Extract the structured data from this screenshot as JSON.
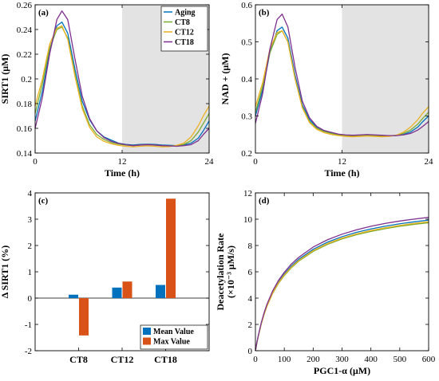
{
  "colors": {
    "aging": "#0072BD",
    "ct8": "#77AC30",
    "ct12": "#EDB120",
    "ct18": "#7E2F8E",
    "mean": "#0072BD",
    "max": "#D95319",
    "night_shade": "#E3E3E3"
  },
  "chart_data": [
    {
      "id": "a",
      "type": "line",
      "panel_label": "(a)",
      "xlabel": "Time (h)",
      "ylabel": "SIRT1 (μM)",
      "xlim": [
        0,
        24
      ],
      "ylim": [
        0.14,
        0.26
      ],
      "xticks": [
        0,
        12,
        24
      ],
      "yticks": [
        0.14,
        0.16,
        0.18,
        0.2,
        0.22,
        0.24,
        0.26
      ],
      "ytick_labels": [
        "0.14",
        "0.16",
        "0.18",
        "0.2",
        "0.22",
        "0.24",
        "0.26"
      ],
      "shaded_x": [
        12,
        24
      ],
      "legend": "top-right",
      "x": [
        0,
        1,
        2,
        3,
        3.7,
        4.5,
        5.5,
        6.5,
        7.5,
        8.5,
        9.5,
        10.5,
        11.5,
        12.5,
        13.5,
        14.5,
        15.5,
        16.5,
        17.5,
        18.5,
        19.5,
        20.5,
        21.5,
        22.5,
        23.2,
        24
      ],
      "series": [
        {
          "name": "Aging",
          "color_key": "aging",
          "values": [
            0.166,
            0.19,
            0.222,
            0.243,
            0.246,
            0.237,
            0.208,
            0.182,
            0.167,
            0.158,
            0.153,
            0.1505,
            0.148,
            0.147,
            0.1465,
            0.147,
            0.1472,
            0.147,
            0.1465,
            0.1463,
            0.146,
            0.1465,
            0.148,
            0.152,
            0.158,
            0.166
          ]
        },
        {
          "name": "CT8",
          "color_key": "ct8",
          "values": [
            0.172,
            0.196,
            0.225,
            0.24,
            0.242,
            0.233,
            0.204,
            0.178,
            0.163,
            0.155,
            0.151,
            0.1485,
            0.1472,
            0.1465,
            0.146,
            0.1465,
            0.1468,
            0.1465,
            0.146,
            0.1458,
            0.146,
            0.147,
            0.15,
            0.157,
            0.164,
            0.172
          ]
        },
        {
          "name": "CT12",
          "color_key": "ct12",
          "values": [
            0.178,
            0.2,
            0.228,
            0.241,
            0.243,
            0.232,
            0.202,
            0.176,
            0.161,
            0.153,
            0.1495,
            0.1475,
            0.1462,
            0.1455,
            0.145,
            0.1455,
            0.1458,
            0.1455,
            0.145,
            0.1452,
            0.1462,
            0.148,
            0.153,
            0.162,
            0.17,
            0.178
          ]
        },
        {
          "name": "CT18",
          "color_key": "ct18",
          "values": [
            0.16,
            0.185,
            0.22,
            0.248,
            0.255,
            0.248,
            0.216,
            0.186,
            0.168,
            0.158,
            0.1525,
            0.1495,
            0.1478,
            0.1468,
            0.146,
            0.1465,
            0.1468,
            0.1465,
            0.146,
            0.1458,
            0.1455,
            0.146,
            0.1468,
            0.15,
            0.155,
            0.16
          ]
        }
      ]
    },
    {
      "id": "b",
      "type": "line",
      "panel_label": "(b)",
      "xlabel": "Time (h)",
      "ylabel": "NAD + (μM)",
      "xlim": [
        0,
        24
      ],
      "ylim": [
        0.2,
        0.6
      ],
      "xticks": [
        0,
        12,
        24
      ],
      "yticks": [
        0.2,
        0.3,
        0.4,
        0.5,
        0.6
      ],
      "ytick_labels": [
        "0.2",
        "0.3",
        "0.4",
        "0.5",
        "0.6"
      ],
      "shaded_x": [
        12,
        24
      ],
      "x": [
        0,
        1,
        2,
        3,
        3.7,
        4.5,
        5.5,
        6.5,
        7.5,
        8.5,
        9.5,
        10.5,
        11.5,
        12.5,
        13.5,
        14.5,
        15.5,
        16.5,
        17.5,
        18.5,
        19.5,
        20.5,
        21.5,
        22.5,
        23.2,
        24
      ],
      "series": [
        {
          "name": "Aging",
          "color_key": "aging",
          "values": [
            0.3,
            0.37,
            0.47,
            0.53,
            0.54,
            0.51,
            0.41,
            0.33,
            0.29,
            0.27,
            0.26,
            0.255,
            0.25,
            0.248,
            0.247,
            0.248,
            0.249,
            0.248,
            0.247,
            0.246,
            0.247,
            0.25,
            0.257,
            0.27,
            0.285,
            0.3
          ]
        },
        {
          "name": "CT8",
          "color_key": "ct8",
          "values": [
            0.31,
            0.38,
            0.47,
            0.52,
            0.53,
            0.5,
            0.4,
            0.325,
            0.285,
            0.267,
            0.258,
            0.253,
            0.249,
            0.247,
            0.246,
            0.247,
            0.248,
            0.247,
            0.246,
            0.246,
            0.248,
            0.253,
            0.262,
            0.278,
            0.294,
            0.31
          ]
        },
        {
          "name": "CT12",
          "color_key": "ct12",
          "values": [
            0.325,
            0.39,
            0.48,
            0.525,
            0.53,
            0.5,
            0.4,
            0.322,
            0.282,
            0.264,
            0.255,
            0.25,
            0.247,
            0.245,
            0.244,
            0.245,
            0.246,
            0.245,
            0.244,
            0.245,
            0.248,
            0.256,
            0.27,
            0.29,
            0.308,
            0.325
          ]
        },
        {
          "name": "CT18",
          "color_key": "ct18",
          "values": [
            0.28,
            0.36,
            0.48,
            0.56,
            0.575,
            0.54,
            0.43,
            0.34,
            0.295,
            0.272,
            0.261,
            0.256,
            0.251,
            0.249,
            0.248,
            0.249,
            0.25,
            0.249,
            0.248,
            0.247,
            0.247,
            0.249,
            0.253,
            0.262,
            0.272,
            0.285
          ]
        }
      ]
    },
    {
      "id": "c",
      "type": "bar",
      "panel_label": "(c)",
      "xlabel": "",
      "ylabel": "Δ SIRT1 (%)",
      "categories": [
        "CT8",
        "CT12",
        "CT18"
      ],
      "ylim": [
        -2,
        4
      ],
      "yticks": [
        -2,
        -1,
        0,
        1,
        2,
        3,
        4
      ],
      "ytick_labels": [
        "-2",
        "-1",
        "0",
        "1",
        "2",
        "3",
        "4"
      ],
      "legend": "bottom-right",
      "series": [
        {
          "name": "Mean Value",
          "color_key": "mean",
          "values": [
            0.13,
            0.4,
            0.5
          ]
        },
        {
          "name": "Max Value",
          "color_key": "max",
          "values": [
            -1.42,
            0.63,
            3.78
          ]
        }
      ]
    },
    {
      "id": "d",
      "type": "line",
      "panel_label": "(d)",
      "xlabel": "PGC1-α (μM)",
      "ylabel": "Deacetylation Rate",
      "ylabel_line2": "(×10⁻³ μM/s)",
      "xlim": [
        0,
        600
      ],
      "ylim": [
        0,
        12
      ],
      "xticks": [
        0,
        100,
        200,
        300,
        400,
        500,
        600
      ],
      "yticks": [
        0,
        2,
        4,
        6,
        8,
        10,
        12
      ],
      "ytick_labels": [
        "0",
        "2",
        "4",
        "6",
        "8",
        "10",
        "12"
      ],
      "x": [
        0,
        5,
        10,
        20,
        30,
        40,
        60,
        80,
        100,
        125,
        150,
        200,
        250,
        300,
        350,
        400,
        450,
        500,
        550,
        600
      ],
      "series": [
        {
          "color_key": "aging",
          "values": [
            0,
            0.6,
            1.13,
            2.05,
            2.81,
            3.45,
            4.46,
            5.23,
            5.83,
            6.45,
            6.95,
            7.71,
            8.26,
            8.67,
            9.0,
            9.26,
            9.47,
            9.65,
            9.8,
            9.93
          ]
        },
        {
          "color_key": "ct8",
          "values": [
            0,
            0.59,
            1.11,
            2.01,
            2.75,
            3.38,
            4.37,
            5.12,
            5.71,
            6.32,
            6.81,
            7.55,
            8.09,
            8.5,
            8.82,
            9.07,
            9.28,
            9.46,
            9.61,
            9.73
          ]
        },
        {
          "color_key": "ct12",
          "values": [
            0,
            0.6,
            1.12,
            2.03,
            2.78,
            3.41,
            4.41,
            5.17,
            5.76,
            6.37,
            6.86,
            7.61,
            8.15,
            8.56,
            8.88,
            9.14,
            9.35,
            9.53,
            9.68,
            9.81
          ]
        },
        {
          "color_key": "ct18",
          "values": [
            0,
            0.62,
            1.16,
            2.1,
            2.88,
            3.53,
            4.56,
            5.35,
            5.96,
            6.6,
            7.1,
            7.88,
            8.44,
            8.86,
            9.19,
            9.46,
            9.68,
            9.86,
            10.01,
            10.14
          ]
        }
      ]
    }
  ]
}
